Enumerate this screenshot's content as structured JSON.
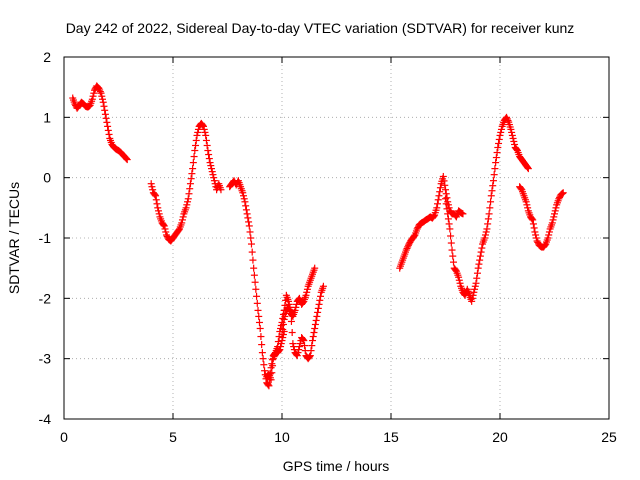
{
  "chart_data": {
    "type": "scatter",
    "title": "Day 242 of 2022, Sidereal Day-to-day VTEC variation (SDTVAR) for receiver kunz",
    "xlabel": "GPS time / hours",
    "ylabel": "SDTVAR / TECUs",
    "xlim": [
      0,
      25
    ],
    "ylim": [
      -4,
      2
    ],
    "xticks": [
      "0",
      "5",
      "10",
      "15",
      "20",
      "25"
    ],
    "yticks": [
      "-4",
      "-3",
      "-2",
      "-1",
      "0",
      "1",
      "2"
    ],
    "grid": true,
    "marker": "plus",
    "color": "#ff0000",
    "series": [
      {
        "x": [
          0.4,
          0.5,
          0.6,
          0.7,
          0.8,
          0.9,
          1.0,
          1.1,
          1.2,
          1.3,
          1.4,
          1.5,
          1.6,
          1.7,
          1.8,
          1.9,
          2.0,
          2.1,
          2.2,
          2.3,
          2.4,
          2.5,
          2.6,
          2.7,
          2.8,
          2.9
        ],
        "y": [
          1.32,
          1.22,
          1.15,
          1.2,
          1.25,
          1.22,
          1.18,
          1.17,
          1.2,
          1.3,
          1.45,
          1.52,
          1.48,
          1.4,
          1.25,
          1.05,
          0.85,
          0.65,
          0.55,
          0.5,
          0.47,
          0.45,
          0.42,
          0.38,
          0.34,
          0.3
        ]
      },
      {
        "x": [
          4.0,
          4.1,
          4.2,
          4.3,
          4.4,
          4.5,
          4.6,
          4.7,
          4.8,
          4.9,
          5.0,
          5.1,
          5.2,
          5.3,
          5.4,
          5.5,
          5.6,
          5.7,
          5.8,
          5.9,
          6.0,
          6.1,
          6.2,
          6.3,
          6.4,
          6.5,
          6.6,
          6.7,
          6.8,
          6.9,
          7.0,
          7.1,
          7.2
        ],
        "y": [
          -0.1,
          -0.25,
          -0.3,
          -0.5,
          -0.65,
          -0.75,
          -0.8,
          -0.95,
          -1.02,
          -1.05,
          -1.0,
          -0.95,
          -0.9,
          -0.85,
          -0.75,
          -0.6,
          -0.5,
          -0.35,
          -0.1,
          0.15,
          0.45,
          0.7,
          0.85,
          0.9,
          0.85,
          0.7,
          0.45,
          0.25,
          0.1,
          -0.05,
          -0.2,
          -0.1,
          -0.2
        ]
      },
      {
        "x": [
          7.6,
          7.7,
          7.8,
          7.9,
          8.0,
          8.1,
          8.2,
          8.3,
          8.4,
          8.5,
          8.6,
          8.7,
          8.8,
          8.9,
          9.0,
          9.1,
          9.2,
          9.3,
          9.4,
          9.5,
          9.6,
          9.7,
          9.8,
          9.9,
          10.0,
          10.1,
          10.2,
          10.3,
          10.4,
          10.5,
          10.6,
          10.7,
          10.8,
          10.9,
          11.0,
          11.1,
          11.2,
          11.3,
          11.4,
          11.5,
          11.6,
          11.7,
          11.8,
          11.9
        ],
        "y": [
          -0.15,
          -0.1,
          -0.05,
          -0.12,
          -0.05,
          -0.15,
          -0.25,
          -0.4,
          -0.6,
          -0.8,
          -1.1,
          -1.5,
          -1.85,
          -2.2,
          -2.5,
          -2.9,
          -3.2,
          -3.4,
          -3.45,
          -3.15,
          -2.95,
          -2.9,
          -2.8,
          -2.55,
          -2.4,
          -2.2,
          -1.95,
          -2.05,
          -2.2,
          -2.75,
          -2.9,
          -2.95,
          -2.8,
          -2.65,
          -2.7,
          -2.95,
          -3.0,
          -2.95,
          -2.7,
          -2.5,
          -2.3,
          -2.1,
          -1.9,
          -1.8
        ]
      },
      {
        "x": [
          10.0,
          10.1,
          10.2,
          10.3,
          10.4,
          10.5,
          10.6,
          10.7,
          10.8,
          10.9,
          11.0,
          11.1,
          11.2,
          11.3,
          11.4,
          11.5
        ],
        "y": [
          -2.6,
          -2.35,
          -2.2,
          -2.15,
          -2.25,
          -2.3,
          -2.2,
          -2.05,
          -2.0,
          -2.1,
          -2.05,
          -1.95,
          -1.8,
          -1.7,
          -1.6,
          -1.5
        ]
      },
      {
        "x": [
          9.3,
          9.4,
          9.5,
          9.6,
          9.7,
          9.8,
          9.9,
          10.0,
          10.1
        ],
        "y": [
          -3.3,
          -3.25,
          -3.35,
          -3.0,
          -2.9,
          -2.9,
          -2.85,
          -2.7,
          -2.55
        ]
      },
      {
        "x": [
          15.4,
          15.5,
          15.6,
          15.7,
          15.8,
          15.9,
          16.0,
          16.1,
          16.2,
          16.3,
          16.4,
          16.5,
          16.6,
          16.7,
          16.8,
          16.9,
          17.0,
          17.1,
          17.2,
          17.3,
          17.4,
          17.5,
          17.6,
          17.7,
          17.8,
          17.9,
          18.0,
          18.1,
          18.2,
          18.3
        ],
        "y": [
          -1.5,
          -1.4,
          -1.3,
          -1.2,
          -1.12,
          -1.05,
          -1.0,
          -0.95,
          -0.85,
          -0.78,
          -0.75,
          -0.73,
          -0.7,
          -0.68,
          -0.65,
          -0.67,
          -0.62,
          -0.5,
          -0.3,
          -0.1,
          0.02,
          -0.2,
          -0.4,
          -0.55,
          -0.6,
          -0.6,
          -0.65,
          -0.55,
          -0.58,
          -0.6
        ]
      },
      {
        "x": [
          17.5,
          17.6,
          17.7,
          17.8,
          17.9,
          18.0,
          18.1,
          18.2,
          18.3,
          18.4,
          18.5,
          18.6,
          18.7,
          18.8,
          18.9,
          19.0,
          19.1,
          19.2,
          19.3,
          19.4,
          19.5,
          19.6,
          19.7,
          19.8,
          19.9,
          20.0,
          20.1,
          20.2,
          20.3,
          20.4,
          20.5,
          20.6,
          20.7,
          20.8,
          20.9,
          21.0,
          21.1,
          21.2,
          21.3
        ],
        "y": [
          -0.35,
          -0.6,
          -0.85,
          -1.2,
          -1.5,
          -1.55,
          -1.65,
          -1.8,
          -1.9,
          -1.95,
          -1.85,
          -1.95,
          -2.05,
          -1.9,
          -1.75,
          -1.5,
          -1.3,
          -1.1,
          -1.0,
          -0.85,
          -0.6,
          -0.3,
          -0.05,
          0.25,
          0.5,
          0.7,
          0.85,
          0.95,
          1.0,
          0.92,
          0.8,
          0.65,
          0.5,
          0.45,
          0.35,
          0.3,
          0.25,
          0.2,
          0.15
        ]
      },
      {
        "x": [
          20.9,
          21.0,
          21.1,
          21.2,
          21.3,
          21.4,
          21.5,
          21.6,
          21.7,
          21.8,
          21.9,
          22.0,
          22.1,
          22.2,
          22.3,
          22.4,
          22.5,
          22.6,
          22.7,
          22.8,
          22.9
        ],
        "y": [
          -0.15,
          -0.2,
          -0.3,
          -0.4,
          -0.55,
          -0.65,
          -0.7,
          -0.9,
          -1.05,
          -1.12,
          -1.15,
          -1.15,
          -1.1,
          -1.0,
          -0.85,
          -0.75,
          -0.6,
          -0.45,
          -0.35,
          -0.28,
          -0.25
        ]
      }
    ]
  }
}
